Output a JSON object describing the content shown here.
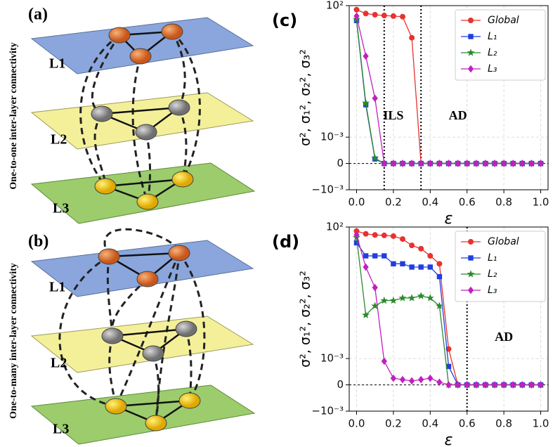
{
  "panels": [
    {
      "label": "(a)",
      "side_label": "One-to-one inter-layer connectivity",
      "layers": [
        "L1",
        "L2",
        "L3"
      ]
    },
    {
      "label": "(b)",
      "side_label": "One-to-many inter-layer connectivity",
      "layers": [
        "L1",
        "L2",
        "L3"
      ]
    }
  ],
  "chart_data": [
    {
      "type": "line",
      "panel_label": "(c)",
      "xlabel": "ε",
      "ylabel": "σ², σ₁², σ₂², σ₃²",
      "yscale": "symlog",
      "linthresh": 0.001,
      "grid": true,
      "legend": "upper right",
      "x": [
        0,
        0.05,
        0.1,
        0.15,
        0.2,
        0.25,
        0.3,
        0.35,
        0.4,
        0.45,
        0.5,
        0.55,
        0.6,
        0.65,
        0.7,
        0.75,
        0.8,
        0.85,
        0.9,
        0.95,
        1.0
      ],
      "xlim": [
        -0.04,
        1.04
      ],
      "xticks": [
        {
          "value": 0,
          "label": "0.0"
        },
        0.2,
        0.4,
        0.6,
        0.8,
        {
          "value": 1,
          "label": "1.0"
        }
      ],
      "ylim": [
        -0.001,
        100
      ],
      "yticks": [
        {
          "value": -0.001,
          "label": "−10⁻³"
        },
        0,
        {
          "value": 0.001,
          "label": "10⁻³"
        },
        {
          "value": 100,
          "label": "10²"
        }
      ],
      "vlines": [
        0.15,
        0.35
      ],
      "annotations": [
        {
          "text": "ILS",
          "x": 0.2,
          "y": 0.006
        },
        {
          "text": "AD",
          "x": 0.55,
          "y": 0.006
        }
      ],
      "series": [
        {
          "name": "Global",
          "color": "#e8322f",
          "marker": "circle",
          "values": [
            70,
            50,
            45,
            42,
            40,
            38,
            6,
            0,
            0,
            0,
            0,
            0,
            0,
            0,
            0,
            0,
            0,
            0,
            0,
            0,
            0
          ]
        },
        {
          "name": "L₁",
          "color": "#1f3fe0",
          "marker": "square",
          "values": [
            27,
            0.017,
            0.00017,
            0,
            0,
            0,
            0,
            0,
            0,
            0,
            0,
            0,
            0,
            0,
            0,
            0,
            0,
            0,
            0,
            0,
            0
          ]
        },
        {
          "name": "L₂",
          "color": "#2a8a2a",
          "marker": "star",
          "values": [
            30,
            0.02,
            0.0002,
            0,
            0,
            0,
            0,
            0,
            0,
            0,
            0,
            0,
            0,
            0,
            0,
            0,
            0,
            0,
            0,
            0,
            0
          ]
        },
        {
          "name": "L₃",
          "color": "#c020c0",
          "marker": "diamond",
          "values": [
            40,
            1.2,
            0.03,
            0,
            0,
            0,
            0,
            0,
            0,
            0,
            0,
            0,
            0,
            0,
            0,
            0,
            0,
            0,
            0,
            0,
            0
          ]
        }
      ]
    },
    {
      "type": "line",
      "panel_label": "(d)",
      "xlabel": "ε",
      "ylabel": "σ², σ₁², σ₂², σ₃²",
      "yscale": "symlog",
      "linthresh": 0.001,
      "grid": true,
      "legend": "upper right",
      "x": [
        0,
        0.05,
        0.1,
        0.15,
        0.2,
        0.25,
        0.3,
        0.35,
        0.4,
        0.45,
        0.5,
        0.55,
        0.6,
        0.65,
        0.7,
        0.75,
        0.8,
        0.85,
        0.9,
        0.95,
        1.0
      ],
      "xlim": [
        -0.04,
        1.04
      ],
      "xticks": [
        {
          "value": 0,
          "label": "0.0"
        },
        0.2,
        0.4,
        0.6,
        0.8,
        {
          "value": 1,
          "label": "1.0"
        }
      ],
      "ylim": [
        -0.001,
        100
      ],
      "yticks": [
        {
          "value": -0.001,
          "label": "−10⁻³"
        },
        0,
        {
          "value": 0.001,
          "label": "10⁻³"
        },
        {
          "value": 100,
          "label": "10²"
        }
      ],
      "vlines": [
        0.6
      ],
      "annotations": [
        {
          "text": "AD",
          "x": 0.8,
          "y": 0.006
        }
      ],
      "series": [
        {
          "name": "Global",
          "color": "#e8322f",
          "marker": "circle",
          "values": [
            70,
            55,
            50,
            48,
            45,
            35,
            20,
            15,
            8,
            4,
            0.0023,
            0,
            0,
            0,
            0,
            0,
            0,
            0,
            0,
            0,
            0
          ]
        },
        {
          "name": "L₁",
          "color": "#1f3fe0",
          "marker": "square",
          "values": [
            25,
            8,
            8,
            8,
            4,
            4,
            3,
            3,
            3,
            1.3,
            0.0007,
            0,
            0,
            0,
            0,
            0,
            0,
            0,
            0,
            0,
            0
          ]
        },
        {
          "name": "L₂",
          "color": "#2a8a2a",
          "marker": "star",
          "values": [
            40,
            0.045,
            0.1,
            0.16,
            0.16,
            0.2,
            0.2,
            0.24,
            0.2,
            0.1,
            0,
            0,
            0,
            0,
            0,
            0,
            0,
            0,
            0,
            0,
            0
          ]
        },
        {
          "name": "L₃",
          "color": "#c020c0",
          "marker": "diamond",
          "values": [
            50,
            3,
            0.5,
            0.0009,
            0.00025,
            0.0002,
            0.00015,
            0.0002,
            0.00025,
            0.0001,
            0,
            0,
            0,
            0,
            0,
            0,
            0,
            0,
            0,
            0,
            0
          ]
        }
      ]
    }
  ]
}
